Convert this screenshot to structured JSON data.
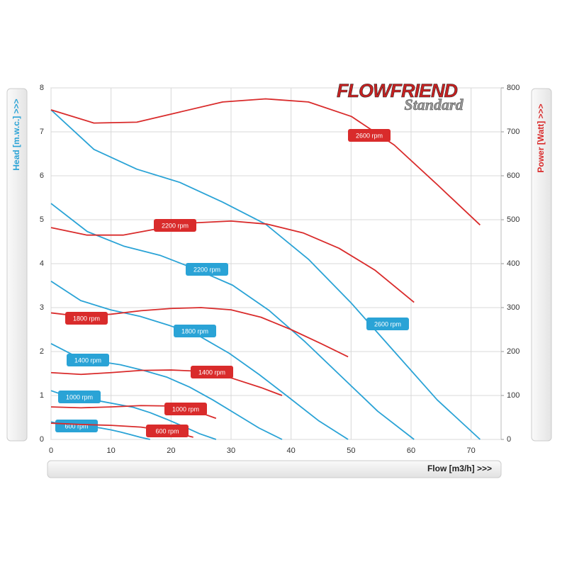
{
  "logo": {
    "brand": "FLOWFRIEND",
    "edition": "Standard"
  },
  "chart_data": {
    "type": "line",
    "xlabel": "Flow [m3/h] >>>",
    "ylabel": "Head [m.w.c.] >>>",
    "y2label": "Power [Watt] >>>",
    "xlim": [
      0,
      75
    ],
    "xticks": [
      0,
      10,
      20,
      30,
      40,
      50,
      60,
      70
    ],
    "ylim": [
      0,
      8
    ],
    "yticks": [
      0,
      1,
      2,
      3,
      4,
      5,
      6,
      7,
      8
    ],
    "y2lim": [
      0,
      800
    ],
    "y2ticks": [
      0,
      100,
      200,
      300,
      400,
      500,
      600,
      700,
      800
    ],
    "grid": true,
    "series": [
      {
        "name": "2600 rpm",
        "color": "#2aa3d6",
        "x": [
          0,
          7.15,
          14.3,
          21.45,
          28.6,
          35.75,
          42.9,
          50.05,
          57.2,
          64.35,
          71.5
        ],
        "values": [
          7.5,
          6.6,
          6.15,
          5.85,
          5.4,
          4.9,
          4.1,
          3.1,
          2.0,
          0.9,
          0
        ]
      },
      {
        "name": "2200 rpm",
        "color": "#2aa3d6",
        "x": [
          0,
          6.05,
          12.1,
          18.15,
          24.2,
          30.25,
          36.3,
          42.35,
          48.4,
          54.45,
          60.5
        ],
        "values": [
          5.37,
          4.73,
          4.4,
          4.19,
          3.87,
          3.51,
          2.94,
          2.22,
          1.43,
          0.64,
          0
        ]
      },
      {
        "name": "1800 rpm",
        "color": "#2aa3d6",
        "x": [
          0,
          4.95,
          9.9,
          14.85,
          19.8,
          24.75,
          29.7,
          34.65,
          39.6,
          44.55,
          49.5
        ],
        "values": [
          3.6,
          3.16,
          2.95,
          2.8,
          2.59,
          2.35,
          1.96,
          1.48,
          0.96,
          0.43,
          0
        ]
      },
      {
        "name": "1400 rpm",
        "color": "#2aa3d6",
        "x": [
          0,
          3.85,
          7.7,
          11.55,
          15.4,
          19.25,
          23.1,
          26.95,
          30.8,
          34.65,
          38.5
        ],
        "values": [
          2.18,
          1.91,
          1.78,
          1.7,
          1.57,
          1.42,
          1.19,
          0.9,
          0.58,
          0.26,
          0
        ]
      },
      {
        "name": "1000 rpm",
        "color": "#2aa3d6",
        "x": [
          0,
          2.75,
          5.5,
          8.25,
          11,
          13.75,
          16.5,
          19.25,
          22,
          24.75,
          27.5
        ],
        "values": [
          1.11,
          0.98,
          0.91,
          0.87,
          0.8,
          0.73,
          0.61,
          0.46,
          0.3,
          0.13,
          0
        ]
      },
      {
        "name": "600 rpm",
        "color": "#2aa3d6",
        "x": [
          0,
          1.65,
          3.3,
          4.95,
          6.6,
          8.25,
          9.9,
          11.55,
          13.2,
          14.85,
          16.5
        ],
        "values": [
          0.4,
          0.35,
          0.33,
          0.31,
          0.29,
          0.26,
          0.22,
          0.17,
          0.11,
          0.05,
          0
        ]
      },
      {
        "name": "2600 rpm",
        "color": "#d92b2b",
        "axis": "y2",
        "x": [
          0,
          7.15,
          14.3,
          21.45,
          28.6,
          35.75,
          42.9,
          50.05,
          57.2,
          64.35,
          71.5
        ],
        "values": [
          750,
          720,
          722,
          745,
          768,
          775,
          768,
          735,
          670,
          580,
          488
        ]
      },
      {
        "name": "2200 rpm",
        "color": "#d92b2b",
        "axis": "y2",
        "x": [
          0,
          6,
          12,
          18,
          24,
          30,
          36,
          42,
          48,
          54,
          60.5
        ],
        "values": [
          482,
          465,
          465,
          480,
          493,
          497,
          490,
          470,
          435,
          385,
          312
        ]
      },
      {
        "name": "1800 rpm",
        "color": "#d92b2b",
        "axis": "y2",
        "x": [
          0,
          5,
          10,
          15,
          20,
          25,
          30,
          35,
          40,
          45,
          49.5
        ],
        "values": [
          288,
          280,
          285,
          293,
          298,
          300,
          295,
          278,
          250,
          218,
          188
        ]
      },
      {
        "name": "1400 rpm",
        "color": "#d92b2b",
        "axis": "y2",
        "x": [
          0,
          5,
          10,
          15,
          20,
          25,
          30,
          35,
          38.5
        ],
        "values": [
          152,
          148,
          152,
          157,
          158,
          155,
          140,
          118,
          100
        ]
      },
      {
        "name": "1000 rpm",
        "color": "#d92b2b",
        "axis": "y2",
        "x": [
          0,
          5,
          10,
          15,
          20,
          24,
          27.5
        ],
        "values": [
          74,
          72,
          74,
          77,
          76,
          65,
          48
        ]
      },
      {
        "name": "600 rpm",
        "color": "#d92b2b",
        "axis": "y2",
        "x": [
          0,
          5,
          10,
          15,
          20,
          23.7
        ],
        "values": [
          37,
          34,
          32,
          28,
          18,
          5
        ]
      }
    ]
  }
}
